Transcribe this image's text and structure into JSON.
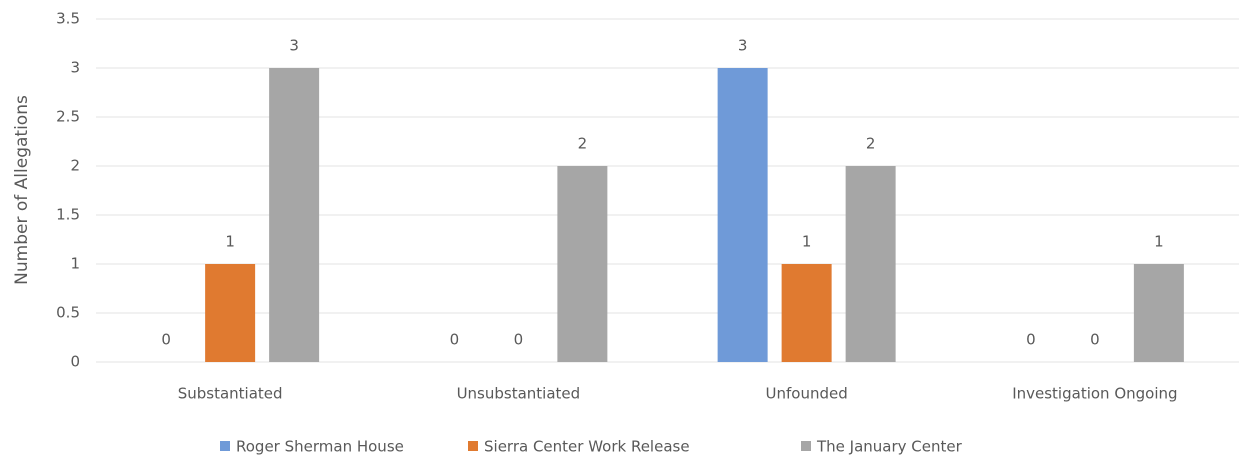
{
  "chart_data": {
    "type": "bar",
    "y_label": "Number of Allegations",
    "categories": [
      "Substantiated",
      "Unsubstantiated",
      "Unfounded",
      "Investigation Ongoing"
    ],
    "series": [
      {
        "name": "Roger Sherman House",
        "color": "#6f9ad8",
        "values": [
          0,
          0,
          3,
          0
        ]
      },
      {
        "name": "Sierra Center Work Release",
        "color": "#e07a30",
        "values": [
          1,
          0,
          1,
          0
        ]
      },
      {
        "name": "The January Center",
        "color": "#a6a6a6",
        "values": [
          3,
          2,
          2,
          1
        ]
      }
    ],
    "ylim": [
      0,
      3.5
    ],
    "yticks": [
      0,
      0.5,
      1,
      1.5,
      2,
      2.5,
      3,
      3.5
    ],
    "grid": true,
    "legend": "bottom"
  }
}
